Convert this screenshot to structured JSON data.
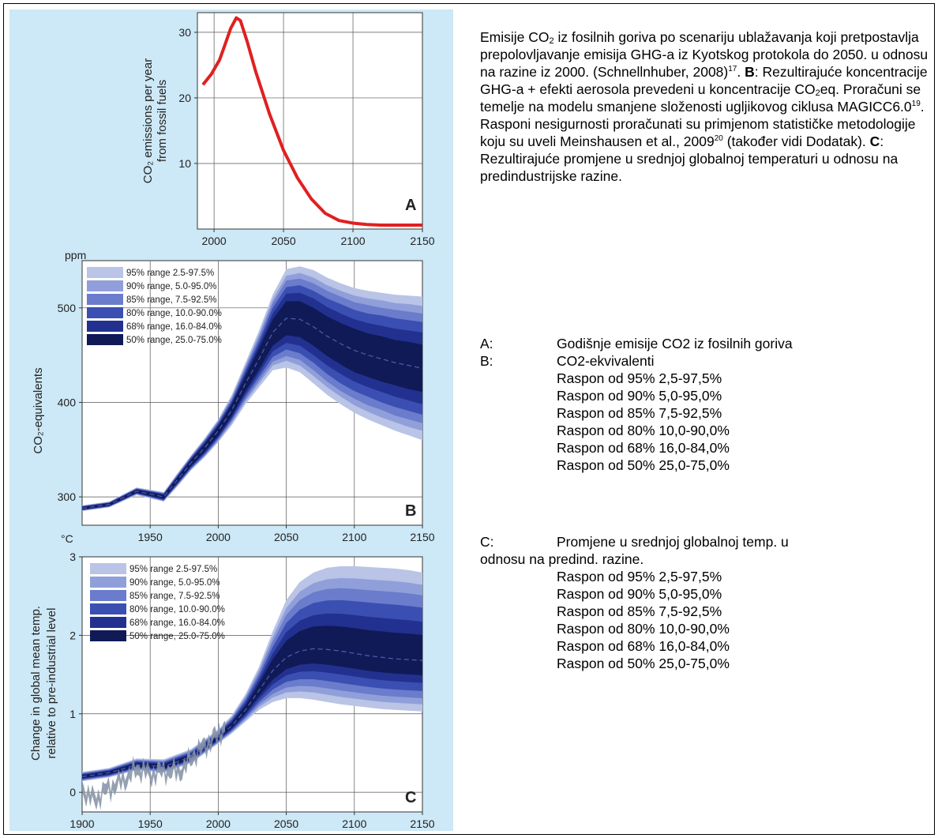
{
  "caption": {
    "line1_prefix": "Emisije CO",
    "line1_sub": "2",
    "line1_suffix": " iz fosilnih goriva po scenariju ublažavanja koji pretpostavlja prepolovljavanje emisija GHG-a iz Kyotskog protokola do 2050. u odnosu na razine iz 2000. (Schnellnhuber, 2008)",
    "ref17": "17",
    "b_label": "B",
    "b_text1": ": Rezultirajuće koncentracije GHG-a + efekti aerosola prevedeni u koncentracije CO",
    "b_sub": "2",
    "b_text2": "eq. Proračuni se temelje na modelu smanjene složenosti ugljikovog ciklusa MAGICC6.0",
    "ref19": "19",
    "b_text3": ". Rasponi nesigurnosti proračunati su primjenom statističke metodologije koju su uveli Meinshausen et al., 2009",
    "ref20": "20",
    "b_text4": " (također vidi Dodatak). ",
    "c_label": "C",
    "c_text": ": Rezultirajuće promjene u srednjoj globalnoj temperaturi u odnosu na predindustrijske razine."
  },
  "legend_list": {
    "a_key": "A:",
    "a_val": "Godišnje emisije CO2 iz fosilnih goriva",
    "b_key": "B:",
    "b_val": "CO2-ekvivalenti",
    "b_items": [
      "Raspon od 95% 2,5-97,5%",
      "Raspon od 90% 5,0-95,0%",
      "Raspon od 85% 7,5-92,5%",
      "Raspon od 80% 10,0-90,0%",
      "Raspon od 68% 16,0-84,0%",
      "Raspon od 50% 25,0-75,0%"
    ],
    "c_key": "C:",
    "c_val": "Promjene u srednjoj globalnoj temp. u",
    "c_val2": "odnosu na predind. razine.",
    "c_items": [
      "Raspon od 95% 2,5-97,5%",
      "Raspon od 90% 5,0-95,0%",
      "Raspon od 85% 7,5-92,5%",
      "Raspon od 80% 10,0-90,0%",
      "Raspon od 68% 16,0-84,0%",
      "Raspon od 50% 25,0-75,0%"
    ]
  },
  "colors": {
    "bands": [
      "#b9c4e6",
      "#909fda",
      "#6a7ccb",
      "#3b4fb2",
      "#22318f",
      "#0f1a57"
    ],
    "emission_line": "#e02020",
    "observed": "#8a96a8"
  },
  "chart_data": [
    {
      "type": "line",
      "panel": "A",
      "ylabel": "CO2 emissions per year from fossil fuels",
      "xlim": [
        1988,
        2150
      ],
      "ylim": [
        0,
        33
      ],
      "xticks": [
        2000,
        2050,
        2100,
        2150
      ],
      "yticks": [
        10,
        20,
        30
      ],
      "series": [
        {
          "x": [
            1992,
            1998,
            2004,
            2008,
            2012,
            2016,
            2019,
            2024,
            2030,
            2040,
            2050,
            2060,
            2070,
            2080,
            2090,
            2100,
            2110,
            2120,
            2130,
            2150
          ],
          "y": [
            22,
            23.6,
            25.8,
            28.2,
            30.6,
            32.2,
            31.8,
            28.5,
            24.0,
            17.5,
            12.0,
            7.8,
            4.6,
            2.4,
            1.3,
            0.9,
            0.7,
            0.6,
            0.6,
            0.6
          ]
        }
      ]
    },
    {
      "type": "area",
      "panel": "B",
      "ylabel": "CO2-equivalents",
      "yunit": "ppm",
      "xlim": [
        1900,
        2150
      ],
      "ylim": [
        270,
        550
      ],
      "xticks": [
        1950,
        2000,
        2050,
        2100,
        2150
      ],
      "yticks": [
        300,
        400,
        500
      ],
      "legend": [
        "95% range 2.5-97.5%",
        "90% range, 5.0-95.0%",
        "85% range, 7.5-92.5%",
        "80% range, 10.0-90.0%",
        "68% range, 16.0-84.0%",
        "50% range, 25.0-75.0%"
      ],
      "x": [
        1900,
        1920,
        1940,
        1960,
        1970,
        1980,
        1990,
        2000,
        2010,
        2020,
        2030,
        2040,
        2050,
        2060,
        2070,
        2080,
        2090,
        2100,
        2110,
        2120,
        2130,
        2140,
        2150
      ],
      "median": [
        288,
        292,
        306,
        300,
        318,
        336,
        352,
        370,
        392,
        420,
        446,
        474,
        489,
        488,
        480,
        470,
        462,
        455,
        450,
        446,
        442,
        439,
        436
      ],
      "widths": [
        [
          3,
          3,
          4,
          5,
          7,
          8,
          10,
          12,
          16,
          22,
          30,
          40,
          52,
          56,
          60,
          62,
          64,
          66,
          68,
          70,
          72,
          74,
          76
        ],
        [
          2.7,
          2.7,
          3.5,
          4.5,
          6,
          7,
          9,
          11,
          14,
          19,
          26,
          35,
          45,
          49,
          52,
          54,
          56,
          58,
          60,
          62,
          63,
          65,
          66
        ],
        [
          2.4,
          2.4,
          3,
          4,
          5.5,
          6.5,
          8,
          9.5,
          12,
          17,
          23,
          31,
          40,
          43,
          46,
          48,
          50,
          51,
          53,
          54,
          56,
          57,
          58
        ],
        [
          2,
          2,
          2.6,
          3.4,
          4.5,
          5.5,
          7,
          8,
          10,
          14,
          19,
          26,
          33,
          36,
          38,
          40,
          42,
          43,
          44,
          46,
          47,
          48,
          49
        ],
        [
          1.6,
          1.6,
          2,
          2.7,
          3.5,
          4.3,
          5.5,
          6.5,
          8,
          11,
          15,
          20,
          26,
          28,
          30,
          31,
          32,
          33,
          34,
          35,
          36,
          37,
          38
        ],
        [
          1.2,
          1.2,
          1.5,
          2,
          2.6,
          3.2,
          4,
          4.8,
          6,
          8,
          11,
          14,
          18,
          19,
          20,
          21,
          22,
          23,
          23,
          24,
          24,
          25,
          25
        ]
      ]
    },
    {
      "type": "area",
      "panel": "C",
      "ylabel": "Change in global mean temp. relative to pre-industrial level",
      "yunit": "°C",
      "xlim": [
        1900,
        2150
      ],
      "ylim": [
        -0.25,
        3
      ],
      "xticks": [
        1900,
        1950,
        2000,
        2050,
        2100,
        2150
      ],
      "yticks": [
        0,
        1,
        2,
        3
      ],
      "legend": [
        "95% range 2.5-97.5%",
        "90% range, 5.0-95.0%",
        "85% range, 7.5-92.5%",
        "80% range, 10.0-90.0%",
        "68% range, 16.0-84.0%",
        "50% range, 25.0-75.0%"
      ],
      "x": [
        1900,
        1920,
        1940,
        1960,
        1980,
        2000,
        2010,
        2020,
        2030,
        2040,
        2050,
        2060,
        2070,
        2080,
        2090,
        2100,
        2110,
        2120,
        2130,
        2140,
        2150
      ],
      "median": [
        0.2,
        0.25,
        0.35,
        0.33,
        0.45,
        0.7,
        0.85,
        1.05,
        1.3,
        1.55,
        1.72,
        1.8,
        1.83,
        1.82,
        1.8,
        1.77,
        1.74,
        1.72,
        1.7,
        1.69,
        1.68
      ],
      "upper95": [
        0.26,
        0.31,
        0.43,
        0.42,
        0.55,
        0.8,
        0.98,
        1.25,
        1.6,
        2.05,
        2.45,
        2.68,
        2.8,
        2.86,
        2.88,
        2.88,
        2.87,
        2.86,
        2.85,
        2.83,
        2.8
      ],
      "lower95": [
        0.14,
        0.19,
        0.28,
        0.25,
        0.37,
        0.62,
        0.75,
        0.9,
        1.05,
        1.15,
        1.2,
        1.2,
        1.18,
        1.15,
        1.12,
        1.1,
        1.08,
        1.06,
        1.05,
        1.04,
        1.03
      ],
      "band_fractions": [
        1.0,
        0.86,
        0.74,
        0.6,
        0.44,
        0.29
      ],
      "observed": {
        "x": [
          1900,
          1905,
          1910,
          1915,
          1920,
          1925,
          1930,
          1935,
          1940,
          1945,
          1950,
          1955,
          1960,
          1965,
          1970,
          1975,
          1980,
          1985,
          1990,
          1995,
          2000,
          2005
        ],
        "y": [
          0.05,
          -0.05,
          -0.1,
          0.0,
          0.05,
          0.1,
          0.15,
          0.22,
          0.3,
          0.28,
          0.22,
          0.25,
          0.28,
          0.26,
          0.27,
          0.3,
          0.45,
          0.5,
          0.6,
          0.65,
          0.75,
          0.82
        ]
      }
    }
  ],
  "panel_labels": {
    "a": "A",
    "b": "B",
    "c": "C",
    "ppm": "ppm",
    "degc": "°C"
  }
}
